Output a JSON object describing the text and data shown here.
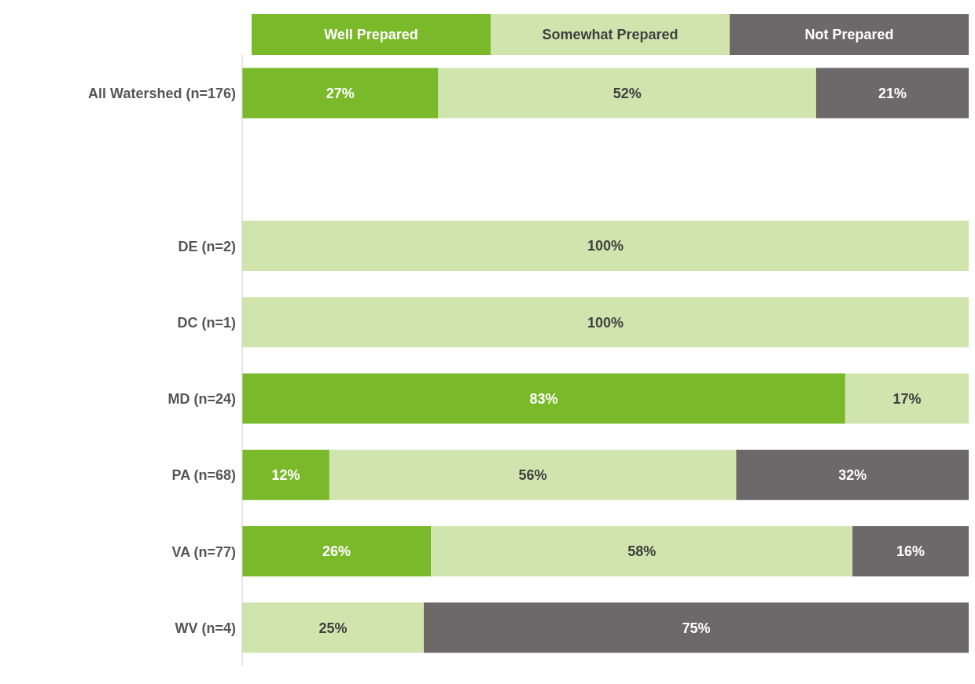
{
  "chart_data": {
    "type": "bar",
    "orientation": "horizontal",
    "stacked": true,
    "categories": [
      "All Watershed (n=176)",
      null,
      "DE (n=2)",
      "DC (n=1)",
      "MD (n=24)",
      "PA (n=68)",
      "VA (n=77)",
      "WV (n=4)"
    ],
    "series": [
      {
        "name": "Well Prepared",
        "color": "#7ab929",
        "values": [
          27,
          null,
          null,
          null,
          83,
          12,
          26,
          null
        ],
        "value_labels": [
          "27%",
          null,
          null,
          null,
          "83%",
          "12%",
          "26%",
          null
        ]
      },
      {
        "name": "Somewhat Prepared",
        "color": "#cfe5ad",
        "values": [
          52,
          null,
          100,
          100,
          17,
          56,
          58,
          25
        ],
        "value_labels": [
          "52%",
          null,
          "100%",
          "100%",
          "17%",
          "56%",
          "58%",
          "25%"
        ]
      },
      {
        "name": "Not Prepared",
        "color": "#6d6869",
        "values": [
          21,
          null,
          null,
          null,
          null,
          32,
          16,
          75
        ],
        "value_labels": [
          "21%",
          null,
          null,
          null,
          null,
          "32%",
          "16%",
          "75%"
        ]
      }
    ],
    "legend": "top",
    "tick_labels": "y"
  }
}
